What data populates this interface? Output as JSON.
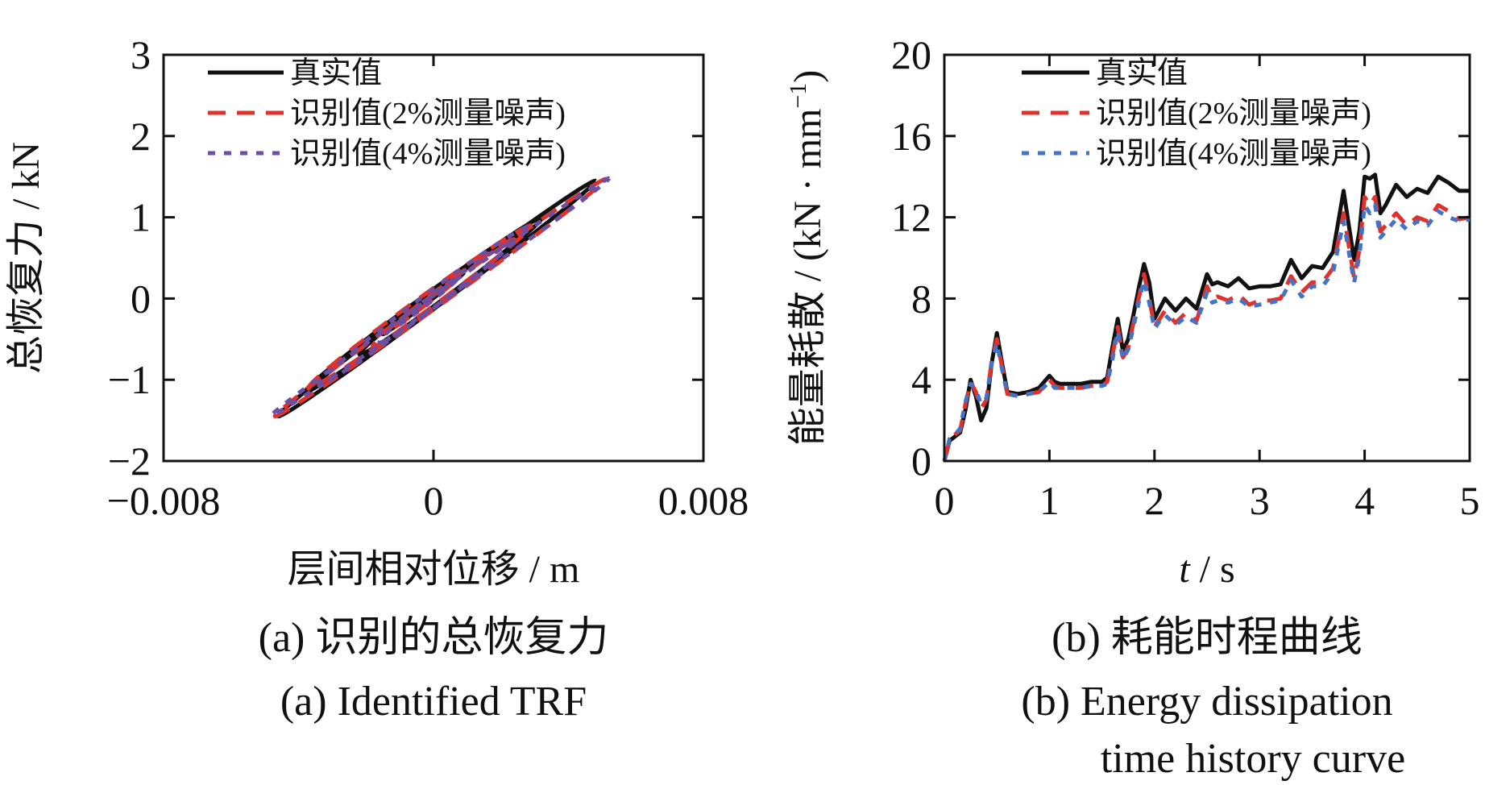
{
  "chart_data": [
    {
      "id": "a",
      "type": "line",
      "subtype": "hysteresis-loop",
      "xlabel": "层间相对位移 / m",
      "ylabel": "总恢复力 / kN",
      "xlim": [
        -0.008,
        0.008
      ],
      "ylim": [
        -2,
        3
      ],
      "x_ticks": [
        {
          "value": -0.008,
          "label": "−0.008"
        },
        {
          "value": 0,
          "label": "0"
        },
        {
          "value": 0.008,
          "label": "0.008"
        }
      ],
      "y_ticks": [
        {
          "value": 3,
          "label": "3"
        },
        {
          "value": 2,
          "label": "2"
        },
        {
          "value": 1,
          "label": "1"
        },
        {
          "value": 0,
          "label": "0"
        },
        {
          "value": -1,
          "label": "−1"
        },
        {
          "value": -2,
          "label": "−2"
        }
      ],
      "grid": false,
      "legend_position": "top-left",
      "caption_cn": "(a)  识别的总恢复力",
      "caption_en": "(a)  Identified TRF",
      "series": [
        {
          "name": "真实值",
          "color": "#111111",
          "style": "solid",
          "loops": [
            {
              "cx": 0.0001,
              "cy": 0.0,
              "ax": 0.0047,
              "ay": 1.45,
              "ph": 0.07
            },
            {
              "cx": -0.0003,
              "cy": -0.08,
              "ax": 0.0035,
              "ay": 1.07,
              "ph": 0.1
            },
            {
              "cx": 0.0002,
              "cy": 0.05,
              "ax": 0.0024,
              "ay": 0.74,
              "ph": 0.12
            },
            {
              "cx": -0.0003,
              "cy": -0.06,
              "ax": 0.0012,
              "ay": 0.38,
              "ph": 0.08
            }
          ]
        },
        {
          "name": "识别值(2%测量噪声)",
          "color": "#e0322d",
          "style": "dashed",
          "loops": [
            {
              "cx": 0.0002,
              "cy": 0.01,
              "ax": 0.0049,
              "ay": 1.46,
              "ph": 0.06
            },
            {
              "cx": -0.0004,
              "cy": -0.1,
              "ax": 0.0033,
              "ay": 1.0,
              "ph": 0.11
            },
            {
              "cx": 0.0003,
              "cy": 0.07,
              "ax": 0.0021,
              "ay": 0.66,
              "ph": 0.14
            },
            {
              "cx": -0.0002,
              "cy": -0.04,
              "ax": 0.001,
              "ay": 0.32,
              "ph": 0.09
            }
          ]
        },
        {
          "name": "识别值(4%测量噪声)",
          "color": "#6a4fa3",
          "style": "dotted",
          "loops": [
            {
              "cx": 0.0002,
              "cy": 0.02,
              "ax": 0.005,
              "ay": 1.46,
              "ph": 0.05
            },
            {
              "cx": -0.0003,
              "cy": -0.09,
              "ax": 0.0031,
              "ay": 0.97,
              "ph": 0.12
            },
            {
              "cx": 0.0003,
              "cy": 0.06,
              "ax": 0.0019,
              "ay": 0.6,
              "ph": 0.15
            },
            {
              "cx": -0.0002,
              "cy": -0.05,
              "ax": 0.0009,
              "ay": 0.29,
              "ph": 0.1
            }
          ]
        }
      ]
    },
    {
      "id": "b",
      "type": "line",
      "xlabel_var": "t",
      "xlabel_unit": " / s",
      "ylabel": "能量耗散 / (kN · mm",
      "ylabel_sup": "−1",
      "ylabel_close": ")",
      "xlim": [
        0,
        5
      ],
      "ylim": [
        0,
        20
      ],
      "x_ticks": [
        {
          "value": 0,
          "label": "0"
        },
        {
          "value": 1,
          "label": "1"
        },
        {
          "value": 2,
          "label": "2"
        },
        {
          "value": 3,
          "label": "3"
        },
        {
          "value": 4,
          "label": "4"
        },
        {
          "value": 5,
          "label": "5"
        }
      ],
      "y_ticks": [
        {
          "value": 20,
          "label": "20"
        },
        {
          "value": 16,
          "label": "16"
        },
        {
          "value": 12,
          "label": "12"
        },
        {
          "value": 8,
          "label": "8"
        },
        {
          "value": 4,
          "label": "4"
        },
        {
          "value": 0,
          "label": "0"
        }
      ],
      "grid": false,
      "legend_position": "top-left",
      "caption_cn": "(b)  耗能时程曲线",
      "caption_en_line1": "(b)  Energy dissipation",
      "caption_en_line2": "time history curve",
      "series": [
        {
          "name": "真实值",
          "color": "#111111",
          "style": "solid",
          "x": [
            0,
            0.05,
            0.1,
            0.15,
            0.2,
            0.25,
            0.3,
            0.35,
            0.4,
            0.45,
            0.5,
            0.55,
            0.6,
            0.7,
            0.8,
            0.9,
            1.0,
            1.05,
            1.1,
            1.2,
            1.3,
            1.4,
            1.5,
            1.55,
            1.6,
            1.65,
            1.7,
            1.75,
            1.8,
            1.85,
            1.9,
            1.95,
            2.0,
            2.05,
            2.1,
            2.2,
            2.3,
            2.4,
            2.5,
            2.55,
            2.6,
            2.7,
            2.8,
            2.9,
            3.0,
            3.1,
            3.2,
            3.3,
            3.4,
            3.5,
            3.6,
            3.7,
            3.8,
            3.85,
            3.9,
            3.95,
            4.0,
            4.05,
            4.1,
            4.15,
            4.2,
            4.3,
            4.4,
            4.5,
            4.6,
            4.7,
            4.8,
            4.9,
            5.0
          ],
          "y": [
            0,
            1.0,
            1.2,
            1.4,
            2.5,
            4.0,
            3.2,
            2.0,
            2.6,
            4.8,
            6.3,
            4.8,
            3.4,
            3.3,
            3.4,
            3.6,
            4.2,
            3.9,
            3.8,
            3.8,
            3.8,
            3.9,
            3.9,
            4.1,
            5.6,
            7.0,
            5.4,
            6.0,
            7.2,
            8.5,
            9.7,
            8.8,
            7.0,
            7.5,
            8.0,
            7.4,
            8.0,
            7.5,
            9.2,
            8.7,
            8.8,
            8.6,
            9.0,
            8.5,
            8.6,
            8.6,
            8.7,
            9.9,
            9.0,
            9.6,
            9.5,
            10.3,
            13.3,
            11.6,
            9.9,
            11.3,
            14.0,
            13.9,
            14.1,
            12.2,
            12.6,
            13.6,
            13.0,
            13.4,
            13.2,
            14.0,
            13.7,
            13.3,
            13.3
          ]
        },
        {
          "name": "识别值(2%测量噪声)",
          "color": "#e0322d",
          "style": "dashed",
          "x": [
            0,
            0.05,
            0.1,
            0.15,
            0.2,
            0.25,
            0.3,
            0.35,
            0.4,
            0.45,
            0.5,
            0.55,
            0.6,
            0.7,
            0.8,
            0.9,
            1.0,
            1.05,
            1.1,
            1.2,
            1.3,
            1.4,
            1.5,
            1.55,
            1.6,
            1.65,
            1.7,
            1.75,
            1.8,
            1.85,
            1.9,
            1.95,
            2.0,
            2.05,
            2.1,
            2.2,
            2.3,
            2.4,
            2.5,
            2.55,
            2.6,
            2.7,
            2.8,
            2.9,
            3.0,
            3.1,
            3.2,
            3.3,
            3.4,
            3.5,
            3.6,
            3.7,
            3.8,
            3.85,
            3.9,
            3.95,
            4.0,
            4.05,
            4.1,
            4.15,
            4.2,
            4.3,
            4.4,
            4.5,
            4.6,
            4.7,
            4.8,
            4.9,
            5.0
          ],
          "y": [
            0,
            1.0,
            1.3,
            1.5,
            2.8,
            3.9,
            3.4,
            2.6,
            3.0,
            4.9,
            6.0,
            4.6,
            3.3,
            3.2,
            3.3,
            3.4,
            4.0,
            3.7,
            3.6,
            3.6,
            3.6,
            3.7,
            3.7,
            3.9,
            5.2,
            6.6,
            5.1,
            5.6,
            6.8,
            8.0,
            9.2,
            8.0,
            6.6,
            7.0,
            7.4,
            6.8,
            7.3,
            6.9,
            8.6,
            8.0,
            8.1,
            7.9,
            8.2,
            7.7,
            7.9,
            7.9,
            8.0,
            9.1,
            8.3,
            8.8,
            8.8,
            9.5,
            12.2,
            10.6,
            9.0,
            10.4,
            13.0,
            12.6,
            13.0,
            11.3,
            11.6,
            12.2,
            11.6,
            12.0,
            11.8,
            12.6,
            12.3,
            11.9,
            12.0
          ]
        },
        {
          "name": "识别值(4%测量噪声)",
          "color": "#4472c4",
          "style": "dotted",
          "x": [
            0,
            0.05,
            0.1,
            0.15,
            0.2,
            0.25,
            0.3,
            0.35,
            0.4,
            0.45,
            0.5,
            0.55,
            0.6,
            0.7,
            0.8,
            0.9,
            1.0,
            1.05,
            1.1,
            1.2,
            1.3,
            1.4,
            1.5,
            1.55,
            1.6,
            1.65,
            1.7,
            1.75,
            1.8,
            1.85,
            1.9,
            1.95,
            2.0,
            2.05,
            2.1,
            2.2,
            2.3,
            2.4,
            2.5,
            2.55,
            2.6,
            2.7,
            2.8,
            2.9,
            3.0,
            3.1,
            3.2,
            3.3,
            3.4,
            3.5,
            3.6,
            3.7,
            3.8,
            3.85,
            3.9,
            3.95,
            4.0,
            4.05,
            4.1,
            4.15,
            4.2,
            4.3,
            4.4,
            4.5,
            4.6,
            4.7,
            4.8,
            4.9,
            5.0
          ],
          "y": [
            0,
            1.1,
            1.3,
            1.6,
            2.9,
            3.8,
            3.5,
            2.8,
            3.1,
            4.8,
            5.8,
            4.5,
            3.3,
            3.2,
            3.3,
            3.4,
            3.9,
            3.6,
            3.6,
            3.6,
            3.6,
            3.7,
            3.7,
            3.8,
            5.0,
            6.4,
            5.0,
            5.5,
            6.6,
            7.8,
            8.9,
            7.8,
            6.5,
            6.9,
            7.2,
            6.7,
            7.1,
            6.8,
            8.3,
            7.8,
            7.9,
            7.8,
            8.0,
            7.6,
            7.7,
            7.8,
            7.9,
            8.9,
            8.1,
            8.6,
            8.6,
            9.3,
            11.8,
            10.3,
            8.8,
            10.1,
            12.6,
            12.2,
            12.6,
            11.0,
            11.3,
            11.9,
            11.4,
            11.8,
            11.6,
            12.3,
            12.0,
            11.8,
            11.9
          ]
        }
      ]
    }
  ]
}
